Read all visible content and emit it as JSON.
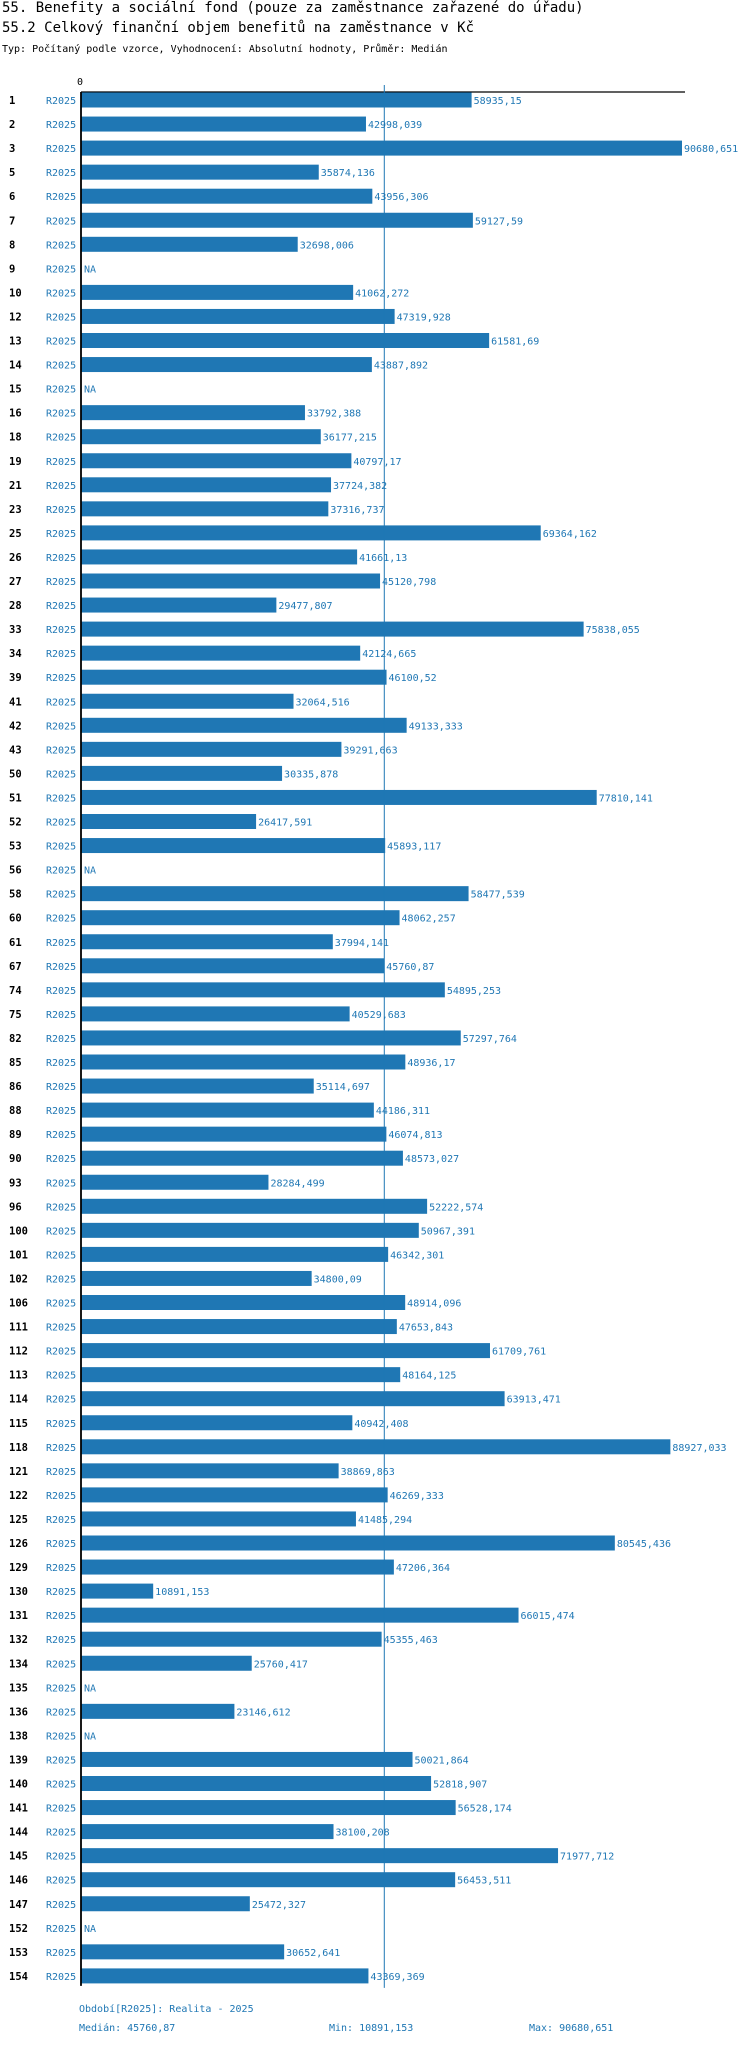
{
  "header": {
    "title": "55. Benefity a sociální fond (pouze za zaměstnance zařazené do úřadu)",
    "subtitle_title": "55.2 Celkový finanční objem benefitů na zaměstnance v Kč",
    "info": "Typ: Počítaný podle vzorce, Vyhodnocení: Absolutní hodnoty, Průměr: Medián"
  },
  "colors": {
    "bar": "#1f77b4",
    "text_blue": "#1f77b4",
    "axis": "#000000"
  },
  "chart_data": {
    "type": "bar",
    "orientation": "horizontal",
    "title": "55.2 Celkový finanční objem benefitů na zaměstnance v Kč",
    "axis_zero_label": "0",
    "xlim": [
      0,
      90680.651
    ],
    "median": 45760.87,
    "series_label": "R2025",
    "na_label": "NA",
    "categories": [
      "1",
      "2",
      "3",
      "5",
      "6",
      "7",
      "8",
      "9",
      "10",
      "12",
      "13",
      "14",
      "15",
      "16",
      "18",
      "19",
      "21",
      "23",
      "25",
      "26",
      "27",
      "28",
      "33",
      "34",
      "39",
      "41",
      "42",
      "43",
      "50",
      "51",
      "52",
      "53",
      "56",
      "58",
      "60",
      "61",
      "67",
      "74",
      "75",
      "82",
      "85",
      "86",
      "88",
      "89",
      "90",
      "93",
      "96",
      "100",
      "101",
      "102",
      "106",
      "111",
      "112",
      "113",
      "114",
      "115",
      "118",
      "121",
      "122",
      "125",
      "126",
      "129",
      "130",
      "131",
      "132",
      "134",
      "135",
      "136",
      "138",
      "139",
      "140",
      "141",
      "144",
      "145",
      "146",
      "147",
      "152",
      "153",
      "154"
    ],
    "values": [
      58935.15,
      42998.039,
      90680.651,
      35874.136,
      43956.306,
      59127.59,
      32698.006,
      null,
      41062.272,
      47319.928,
      61581.69,
      43887.892,
      null,
      33792.388,
      36177.215,
      40797.17,
      37724.382,
      37316.737,
      69364.162,
      41661.13,
      45120.798,
      29477.807,
      75838.055,
      42124.665,
      46100.52,
      32064.516,
      49133.333,
      39291.663,
      30335.878,
      77810.141,
      26417.591,
      45893.117,
      null,
      58477.539,
      48062.257,
      37994.141,
      45760.87,
      54895.253,
      40529.683,
      57297.764,
      48936.17,
      35114.697,
      44186.311,
      46074.813,
      48573.027,
      28284.499,
      52222.574,
      50967.391,
      46342.301,
      34800.09,
      48914.096,
      47653.843,
      61709.761,
      48164.125,
      63913.471,
      40942.408,
      88927.033,
      38869.863,
      46269.333,
      41485.294,
      80545.436,
      47206.364,
      10891.153,
      66015.474,
      45355.463,
      25760.417,
      null,
      23146.612,
      null,
      50021.864,
      52818.907,
      56528.174,
      38100.208,
      71977.712,
      56453.511,
      25472.327,
      null,
      30652.641,
      43369.369
    ],
    "value_labels": [
      "58935,15",
      "42998,039",
      "90680,651",
      "35874,136",
      "43956,306",
      "59127,59",
      "32698,006",
      "NA",
      "41062,272",
      "47319,928",
      "61581,69",
      "43887,892",
      "NA",
      "33792,388",
      "36177,215",
      "40797,17",
      "37724,382",
      "37316,737",
      "69364,162",
      "41661,13",
      "45120,798",
      "29477,807",
      "75838,055",
      "42124,665",
      "46100,52",
      "32064,516",
      "49133,333",
      "39291,663",
      "30335,878",
      "77810,141",
      "26417,591",
      "45893,117",
      "NA",
      "58477,539",
      "48062,257",
      "37994,141",
      "45760,87",
      "54895,253",
      "40529,683",
      "57297,764",
      "48936,17",
      "35114,697",
      "44186,311",
      "46074,813",
      "48573,027",
      "28284,499",
      "52222,574",
      "50967,391",
      "46342,301",
      "34800,09",
      "48914,096",
      "47653,843",
      "61709,761",
      "48164,125",
      "63913,471",
      "40942,408",
      "88927,033",
      "38869,863",
      "46269,333",
      "41485,294",
      "80545,436",
      "47206,364",
      "10891,153",
      "66015,474",
      "45355,463",
      "25760,417",
      "NA",
      "23146,612",
      "NA",
      "50021,864",
      "52818,907",
      "56528,174",
      "38100,208",
      "71977,712",
      "56453,511",
      "25472,327",
      "NA",
      "30652,641",
      "43369,369"
    ]
  },
  "footer": {
    "period": "Období[R2025]: Realita - 2025",
    "median": "Medián: 45760,87",
    "min": "Min: 10891,153",
    "max": "Max: 90680,651"
  }
}
